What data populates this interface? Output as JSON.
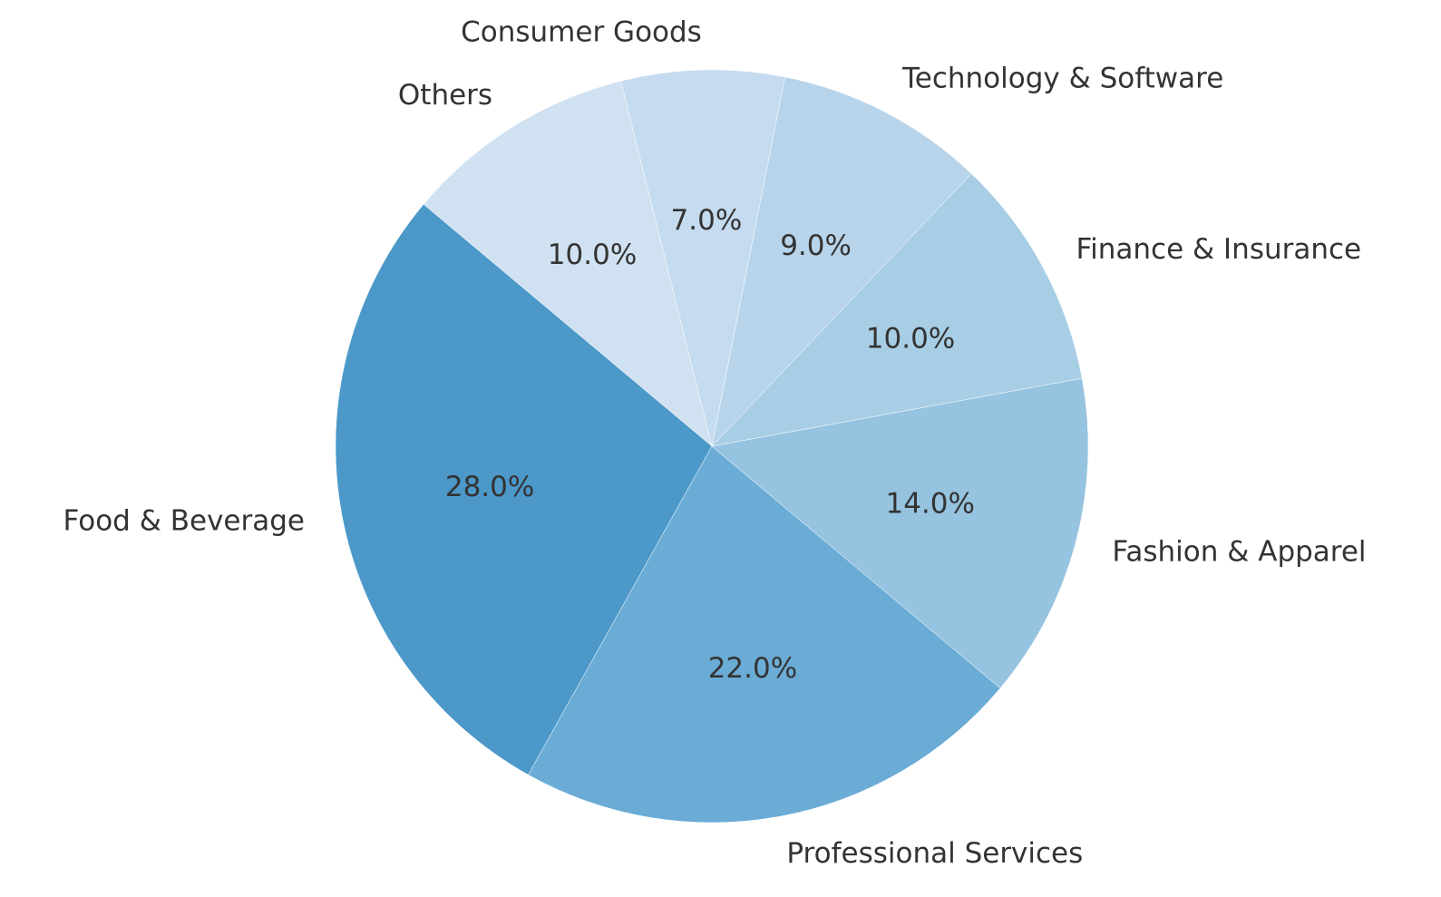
{
  "chart_data": {
    "type": "pie",
    "title": "",
    "start_angle_deg": 140,
    "direction": "counterclockwise",
    "slices": [
      {
        "label": "Food & Beverage",
        "value": 28.0,
        "pct_text": "28.0%",
        "color": "#4b98c9"
      },
      {
        "label": "Professional Services",
        "value": 22.0,
        "pct_text": "22.0%",
        "color": "#6aacd6"
      },
      {
        "label": "Fashion & Apparel",
        "value": 14.0,
        "pct_text": "14.0%",
        "color": "#95c3e0"
      },
      {
        "label": "Finance & Insurance",
        "value": 10.0,
        "pct_text": "10.0%",
        "color": "#a7cee4"
      },
      {
        "label": "Technology & Software",
        "value": 9.0,
        "pct_text": "9.0%",
        "color": "#b7d4ea"
      },
      {
        "label": "Consumer Goods",
        "value": 7.0,
        "pct_text": "7.0%",
        "color": "#c5dbef"
      },
      {
        "label": "Others",
        "value": 10.0,
        "pct_text": "10.0%",
        "color": "#d0e1f1"
      }
    ]
  }
}
